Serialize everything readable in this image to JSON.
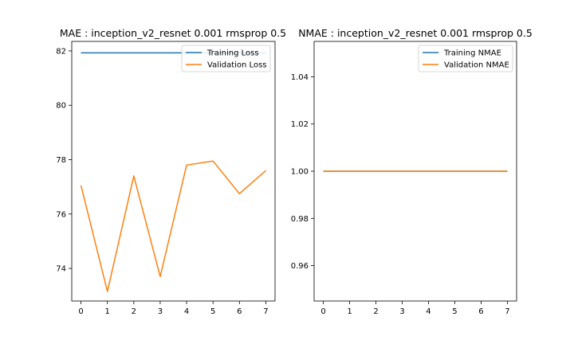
{
  "chart_data": [
    {
      "type": "line",
      "title": "MAE : inception_v2_resnet 0.001 rmsprop 0.5",
      "xlabel": "",
      "ylabel": "",
      "x": [
        0,
        1,
        2,
        3,
        4,
        5,
        6,
        7
      ],
      "xlim": [
        -0.35,
        7.35
      ],
      "ylim": [
        72.8,
        82.35
      ],
      "xticks": [
        0,
        1,
        2,
        3,
        4,
        5,
        6,
        7
      ],
      "yticks": [
        74,
        76,
        78,
        80,
        82
      ],
      "grid": false,
      "legend_position": "top-right",
      "series": [
        {
          "name": "Training Loss",
          "color": "#1f77b4",
          "values": [
            81.93,
            81.93,
            81.93,
            81.93,
            81.93,
            81.93,
            81.93,
            81.93
          ]
        },
        {
          "name": "Validation Loss",
          "color": "#ff7f0e",
          "values": [
            77.05,
            73.15,
            77.4,
            73.7,
            77.8,
            77.95,
            76.75,
            77.6
          ]
        }
      ]
    },
    {
      "type": "line",
      "title": "NMAE : inception_v2_resnet 0.001 rmsprop 0.5",
      "xlabel": "",
      "ylabel": "",
      "x": [
        0,
        1,
        2,
        3,
        4,
        5,
        6,
        7
      ],
      "xlim": [
        -0.35,
        7.35
      ],
      "ylim": [
        0.945,
        1.055
      ],
      "xticks": [
        0,
        1,
        2,
        3,
        4,
        5,
        6,
        7
      ],
      "yticks": [
        0.96,
        0.98,
        1.0,
        1.02,
        1.04
      ],
      "ytick_labels": [
        "0.96",
        "0.98",
        "1.00",
        "1.02",
        "1.04"
      ],
      "grid": false,
      "legend_position": "top-right",
      "series": [
        {
          "name": "Training NMAE",
          "color": "#1f77b4",
          "values": [
            1.0,
            1.0,
            1.0,
            1.0,
            1.0,
            1.0,
            1.0,
            1.0
          ]
        },
        {
          "name": "Validation NMAE",
          "color": "#ff7f0e",
          "values": [
            1.0,
            1.0,
            1.0,
            1.0,
            1.0,
            1.0,
            1.0,
            1.0
          ]
        }
      ]
    }
  ]
}
